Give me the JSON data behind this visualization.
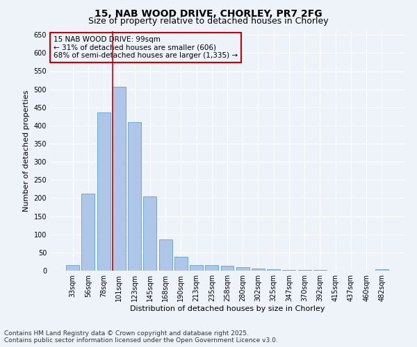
{
  "title_line1": "15, NAB WOOD DRIVE, CHORLEY, PR7 2FG",
  "title_line2": "Size of property relative to detached houses in Chorley",
  "xlabel": "Distribution of detached houses by size in Chorley",
  "ylabel": "Number of detached properties",
  "categories": [
    "33sqm",
    "56sqm",
    "78sqm",
    "101sqm",
    "123sqm",
    "145sqm",
    "168sqm",
    "190sqm",
    "213sqm",
    "235sqm",
    "258sqm",
    "280sqm",
    "302sqm",
    "325sqm",
    "347sqm",
    "370sqm",
    "392sqm",
    "415sqm",
    "437sqm",
    "460sqm",
    "482sqm"
  ],
  "values": [
    15,
    213,
    437,
    507,
    410,
    205,
    86,
    38,
    15,
    15,
    13,
    10,
    5,
    4,
    2,
    2,
    1,
    0,
    0,
    0,
    4
  ],
  "bar_color": "#aec6e8",
  "bar_edge_color": "#6aaad4",
  "vline_color": "#cc0000",
  "annotation_text": "15 NAB WOOD DRIVE: 99sqm\n← 31% of detached houses are smaller (606)\n68% of semi-detached houses are larger (1,335) →",
  "annotation_box_color": "#cc0000",
  "ylim": [
    0,
    660
  ],
  "yticks": [
    0,
    50,
    100,
    150,
    200,
    250,
    300,
    350,
    400,
    450,
    500,
    550,
    600,
    650
  ],
  "footer_text": "Contains HM Land Registry data © Crown copyright and database right 2025.\nContains public sector information licensed under the Open Government Licence v3.0.",
  "background_color": "#eef2f9",
  "grid_color": "#ffffff",
  "title_fontsize": 10,
  "subtitle_fontsize": 9,
  "axis_label_fontsize": 8,
  "tick_fontsize": 7,
  "annotation_fontsize": 7.5,
  "footer_fontsize": 6.5
}
